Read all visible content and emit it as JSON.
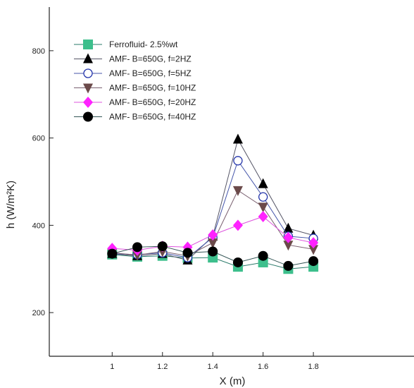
{
  "chart_data": {
    "type": "line",
    "title": "",
    "xlabel": "X (m)",
    "ylabel": "h (W/m²K)",
    "xlim": [
      0.75,
      2.2
    ],
    "ylim": [
      100,
      900
    ],
    "x_ticks": [
      1,
      1.2,
      1.4,
      1.6,
      1.8
    ],
    "x_tick_labels": [
      "1",
      "1.2",
      "1.4",
      "1.6",
      "1.8"
    ],
    "y_ticks": [
      200,
      400,
      600,
      800
    ],
    "y_tick_labels": [
      "200",
      "400",
      "600",
      "800"
    ],
    "grid": false,
    "legend_position": "top-left",
    "x": [
      1,
      1.1,
      1.2,
      1.3,
      1.4,
      1.5,
      1.6,
      1.7,
      1.8
    ],
    "series": [
      {
        "name": "Ferrofluid- 2.5%wt",
        "marker": "square",
        "color": "#3dbf8c",
        "line_color": "#2a7a6a",
        "values": [
          333,
          328,
          330,
          325,
          326,
          305,
          315,
          300,
          305
        ]
      },
      {
        "name": "AMF- B=650G, f=2HZ",
        "marker": "triangle-up",
        "color": "#000000",
        "line_color": "#555566",
        "values": [
          335,
          330,
          335,
          320,
          375,
          597,
          495,
          393,
          377
        ]
      },
      {
        "name": "AMF- B=650G, f=5HZ",
        "marker": "circle-open",
        "color": "#2233aa",
        "line_color": "#4455aa",
        "values": [
          335,
          333,
          337,
          326,
          372,
          548,
          465,
          375,
          370
        ]
      },
      {
        "name": "AMF- B=650G, f=10HZ",
        "marker": "triangle-down",
        "color": "#6b4a4a",
        "line_color": "#7a6070",
        "values": [
          337,
          332,
          340,
          330,
          360,
          480,
          442,
          355,
          345
        ]
      },
      {
        "name": "AMF- B=650G, f=20HZ",
        "marker": "diamond",
        "color": "#ff22ff",
        "line_color": "#dd55dd",
        "values": [
          347,
          343,
          352,
          350,
          378,
          400,
          420,
          372,
          360
        ]
      },
      {
        "name": "AMF- B=650G, f=40HZ",
        "marker": "circle-filled",
        "color": "#000000",
        "line_color": "#335555",
        "values": [
          335,
          350,
          352,
          337,
          340,
          315,
          330,
          307,
          318
        ]
      }
    ]
  }
}
